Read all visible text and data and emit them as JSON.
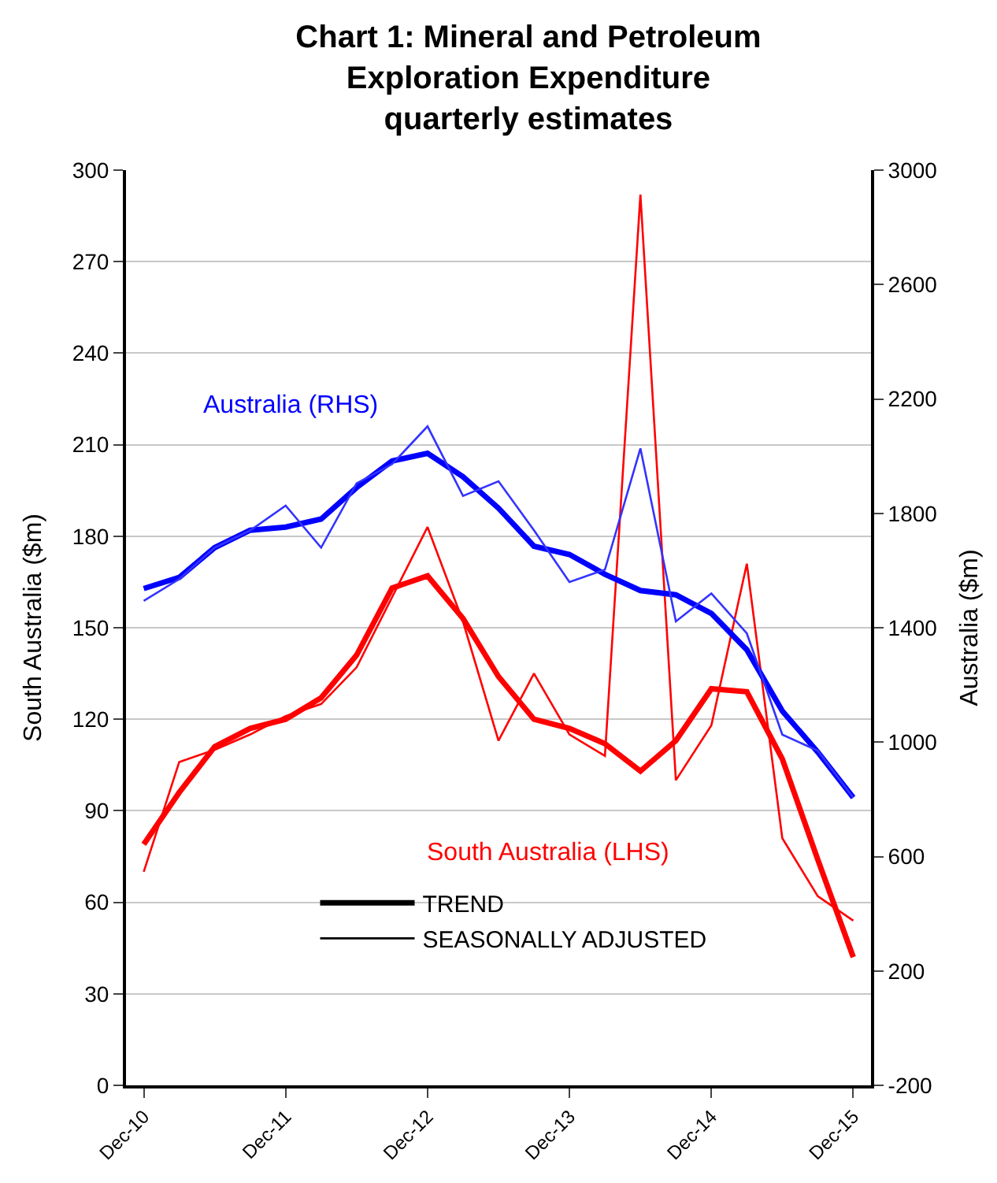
{
  "chart_data": {
    "type": "line",
    "title": "Chart 1: Mineral and Petroleum\nExploration Expenditure\nquarterly estimates",
    "ylabel": "South Australia ($m)",
    "y2label": "Australia ($m)",
    "categories": [
      "Dec-10",
      null,
      null,
      null,
      "Dec-11",
      null,
      null,
      null,
      "Dec-12",
      null,
      null,
      null,
      "Dec-13",
      null,
      null,
      null,
      "Dec-14",
      null,
      null,
      null,
      "Dec-15"
    ],
    "series": [
      {
        "color": "#ff0000",
        "values": [
          79,
          96,
          111,
          117,
          120,
          127,
          141,
          163,
          167,
          153,
          134,
          120,
          117,
          112,
          103,
          113,
          130,
          129,
          107,
          74,
          42
        ]
      },
      {
        "color": "#ff0000",
        "values": [
          70,
          106,
          110,
          115,
          121,
          125,
          137,
          160,
          183,
          152,
          113,
          135,
          115,
          108,
          292,
          100,
          118,
          171,
          81,
          62,
          54
        ]
      },
      {
        "color": "#0000ff",
        "axis": "y2",
        "values": [
          1537,
          1576,
          1680,
          1741,
          1752,
          1780,
          1890,
          1983,
          2010,
          1928,
          1818,
          1685,
          1656,
          1587,
          1530,
          1515,
          1450,
          1323,
          1109,
          965,
          806
        ]
      },
      {
        "color": "#3333ff",
        "axis": "y2",
        "values": [
          1494,
          1570,
          1680,
          1740,
          1827,
          1680,
          1905,
          1972,
          2104,
          1861,
          1912,
          1741,
          1560,
          1603,
          2027,
          1422,
          1520,
          1380,
          1026,
          970,
          806
        ]
      },
      {
        "name": "TREND",
        "color": "#000000",
        "values": [
          null,
          null,
          null,
          null,
          null,
          null,
          null,
          null,
          null,
          null,
          null,
          null,
          null,
          null,
          null,
          null,
          null,
          null,
          null,
          null,
          null
        ]
      },
      {
        "name": "SEASONALLY ADJUSTED",
        "color": "#000000",
        "values": [
          null,
          null,
          null,
          null,
          null,
          null,
          null,
          null,
          null,
          null,
          null,
          null,
          null,
          null,
          null,
          null,
          null,
          null,
          null,
          null,
          null
        ]
      }
    ],
    "annotations": [
      "Australia (RHS)",
      "South Australia (LHS)"
    ],
    "ylim": [
      0,
      300
    ],
    "yticks": [
      0,
      30,
      60,
      90,
      120,
      150,
      180,
      210,
      240,
      270,
      300
    ],
    "y2lim": [
      -200,
      3000
    ],
    "y2ticks": [
      -200,
      200,
      600,
      1000,
      1400,
      1800,
      2200,
      2600,
      3000
    ],
    "grid": "y",
    "legend": "bottom left",
    "marker": "none",
    "line_style": "solid"
  }
}
